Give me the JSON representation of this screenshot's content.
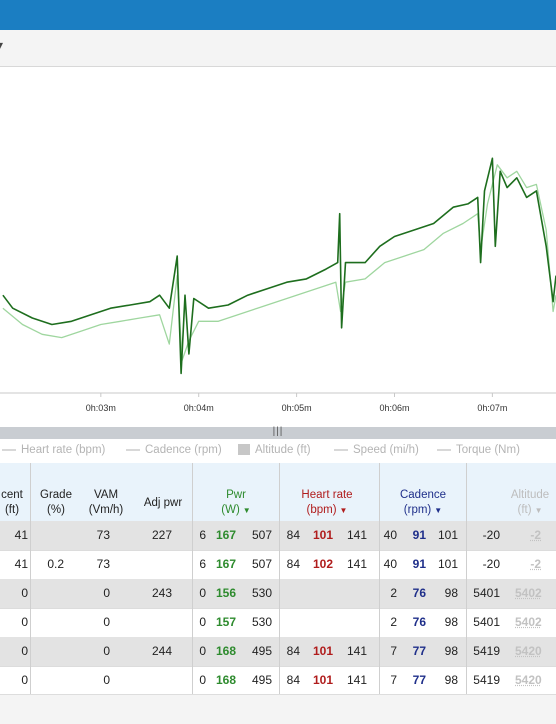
{
  "toolbar": {
    "chevron_icon": "chevron-down-icon"
  },
  "chart_data": {
    "type": "line",
    "x_ticks": [
      "0h:03m",
      "0h:04m",
      "0h:05m",
      "0h:06m",
      "0h:07m"
    ],
    "series": [
      {
        "color": "#1e6e1e",
        "values": [
          {
            "t": 2.0,
            "v": 30
          },
          {
            "t": 2.1,
            "v": 26
          },
          {
            "t": 2.3,
            "v": 23
          },
          {
            "t": 2.5,
            "v": 21
          },
          {
            "t": 2.7,
            "v": 22
          },
          {
            "t": 2.9,
            "v": 24
          },
          {
            "t": 3.1,
            "v": 26
          },
          {
            "t": 3.3,
            "v": 27
          },
          {
            "t": 3.5,
            "v": 28
          },
          {
            "t": 3.6,
            "v": 30
          },
          {
            "t": 3.7,
            "v": 26
          },
          {
            "t": 3.78,
            "v": 42
          },
          {
            "t": 3.82,
            "v": 6
          },
          {
            "t": 3.86,
            "v": 30
          },
          {
            "t": 3.9,
            "v": 12
          },
          {
            "t": 3.95,
            "v": 29
          },
          {
            "t": 4.1,
            "v": 26
          },
          {
            "t": 4.3,
            "v": 27
          },
          {
            "t": 4.5,
            "v": 30
          },
          {
            "t": 4.7,
            "v": 32
          },
          {
            "t": 4.9,
            "v": 34
          },
          {
            "t": 5.1,
            "v": 35
          },
          {
            "t": 5.3,
            "v": 38
          },
          {
            "t": 5.42,
            "v": 40
          },
          {
            "t": 5.44,
            "v": 55
          },
          {
            "t": 5.46,
            "v": 20
          },
          {
            "t": 5.5,
            "v": 40
          },
          {
            "t": 5.7,
            "v": 40
          },
          {
            "t": 5.85,
            "v": 45
          },
          {
            "t": 6.0,
            "v": 48
          },
          {
            "t": 6.2,
            "v": 50
          },
          {
            "t": 6.4,
            "v": 52
          },
          {
            "t": 6.6,
            "v": 57
          },
          {
            "t": 6.75,
            "v": 58
          },
          {
            "t": 6.85,
            "v": 60
          },
          {
            "t": 6.88,
            "v": 40
          },
          {
            "t": 6.92,
            "v": 62
          },
          {
            "t": 7.0,
            "v": 72
          },
          {
            "t": 7.03,
            "v": 45
          },
          {
            "t": 7.08,
            "v": 68
          },
          {
            "t": 7.15,
            "v": 63
          },
          {
            "t": 7.25,
            "v": 66
          },
          {
            "t": 7.35,
            "v": 60
          },
          {
            "t": 7.45,
            "v": 62
          },
          {
            "t": 7.55,
            "v": 45
          },
          {
            "t": 7.62,
            "v": 28
          },
          {
            "t": 7.65,
            "v": 36
          }
        ]
      },
      {
        "color": "#9fd69f",
        "values": [
          {
            "t": 2.0,
            "v": 26
          },
          {
            "t": 2.2,
            "v": 21
          },
          {
            "t": 2.4,
            "v": 18
          },
          {
            "t": 2.6,
            "v": 17
          },
          {
            "t": 2.8,
            "v": 19
          },
          {
            "t": 3.0,
            "v": 21
          },
          {
            "t": 3.2,
            "v": 22
          },
          {
            "t": 3.4,
            "v": 23
          },
          {
            "t": 3.6,
            "v": 24
          },
          {
            "t": 3.7,
            "v": 15
          },
          {
            "t": 3.78,
            "v": 36
          },
          {
            "t": 3.83,
            "v": 10
          },
          {
            "t": 3.9,
            "v": 16
          },
          {
            "t": 4.0,
            "v": 22
          },
          {
            "t": 4.2,
            "v": 22
          },
          {
            "t": 4.4,
            "v": 24
          },
          {
            "t": 4.6,
            "v": 26
          },
          {
            "t": 4.8,
            "v": 28
          },
          {
            "t": 5.0,
            "v": 30
          },
          {
            "t": 5.2,
            "v": 32
          },
          {
            "t": 5.4,
            "v": 34
          },
          {
            "t": 5.45,
            "v": 25
          },
          {
            "t": 5.5,
            "v": 34
          },
          {
            "t": 5.7,
            "v": 35
          },
          {
            "t": 5.9,
            "v": 40
          },
          {
            "t": 6.1,
            "v": 42
          },
          {
            "t": 6.3,
            "v": 44
          },
          {
            "t": 6.5,
            "v": 49
          },
          {
            "t": 6.7,
            "v": 52
          },
          {
            "t": 6.85,
            "v": 55
          },
          {
            "t": 6.88,
            "v": 44
          },
          {
            "t": 6.95,
            "v": 58
          },
          {
            "t": 7.05,
            "v": 70
          },
          {
            "t": 7.15,
            "v": 66
          },
          {
            "t": 7.25,
            "v": 68
          },
          {
            "t": 7.35,
            "v": 63
          },
          {
            "t": 7.45,
            "v": 64
          },
          {
            "t": 7.55,
            "v": 50
          },
          {
            "t": 7.62,
            "v": 25
          },
          {
            "t": 7.65,
            "v": 30
          }
        ]
      }
    ],
    "xlim": [
      1.97,
      7.65
    ],
    "ylim": [
      0,
      100
    ]
  },
  "legend": {
    "items": [
      {
        "label": "Heart rate (bpm)",
        "kind": "line"
      },
      {
        "label": "Cadence (rpm)",
        "kind": "line"
      },
      {
        "label": "Altitude (ft)",
        "kind": "square"
      },
      {
        "label": "Speed (mi/h)",
        "kind": "line"
      },
      {
        "label": "Torque (Nm)",
        "kind": "line"
      }
    ]
  },
  "columns": {
    "ascent": "cent\n(ft)",
    "grade": "Grade\n(%)",
    "vam": "VAM\n(Vm/h)",
    "adj_pwr": "Adj pwr",
    "pwr": "Pwr\n(W)",
    "hr": "Heart rate\n(bpm)",
    "cad": "Cadence\n(rpm)",
    "alt": "Altitude\n(ft)"
  },
  "rows": [
    {
      "shade": true,
      "ascent": "41",
      "grade": "",
      "vam": "73",
      "adj": "227",
      "p1": "6",
      "p2": "167",
      "p3": "507",
      "h1": "84",
      "h2": "101",
      "h3": "141",
      "c1": "40",
      "c2": "91",
      "c3": "101",
      "a1": "-20",
      "a2": "-2"
    },
    {
      "shade": false,
      "ascent": "41",
      "grade": "0.2",
      "vam": "73",
      "adj": "",
      "p1": "6",
      "p2": "167",
      "p3": "507",
      "h1": "84",
      "h2": "102",
      "h3": "141",
      "c1": "40",
      "c2": "91",
      "c3": "101",
      "a1": "-20",
      "a2": "-2"
    },
    {
      "shade": true,
      "ascent": "0",
      "grade": "",
      "vam": "0",
      "adj": "243",
      "p1": "0",
      "p2": "156",
      "p3": "530",
      "h1": "",
      "h2": "",
      "h3": "",
      "c1": "2",
      "c2": "76",
      "c3": "98",
      "a1": "5401",
      "a2": "5402"
    },
    {
      "shade": false,
      "ascent": "0",
      "grade": "",
      "vam": "0",
      "adj": "",
      "p1": "0",
      "p2": "157",
      "p3": "530",
      "h1": "",
      "h2": "",
      "h3": "",
      "c1": "2",
      "c2": "76",
      "c3": "98",
      "a1": "5401",
      "a2": "5402"
    },
    {
      "shade": true,
      "ascent": "0",
      "grade": "",
      "vam": "0",
      "adj": "244",
      "p1": "0",
      "p2": "168",
      "p3": "495",
      "h1": "84",
      "h2": "101",
      "h3": "141",
      "c1": "7",
      "c2": "77",
      "c3": "98",
      "a1": "5419",
      "a2": "5420"
    },
    {
      "shade": false,
      "ascent": "0",
      "grade": "",
      "vam": "0",
      "adj": "",
      "p1": "0",
      "p2": "168",
      "p3": "495",
      "h1": "84",
      "h2": "101",
      "h3": "141",
      "c1": "7",
      "c2": "77",
      "c3": "98",
      "a1": "5419",
      "a2": "5420"
    }
  ]
}
